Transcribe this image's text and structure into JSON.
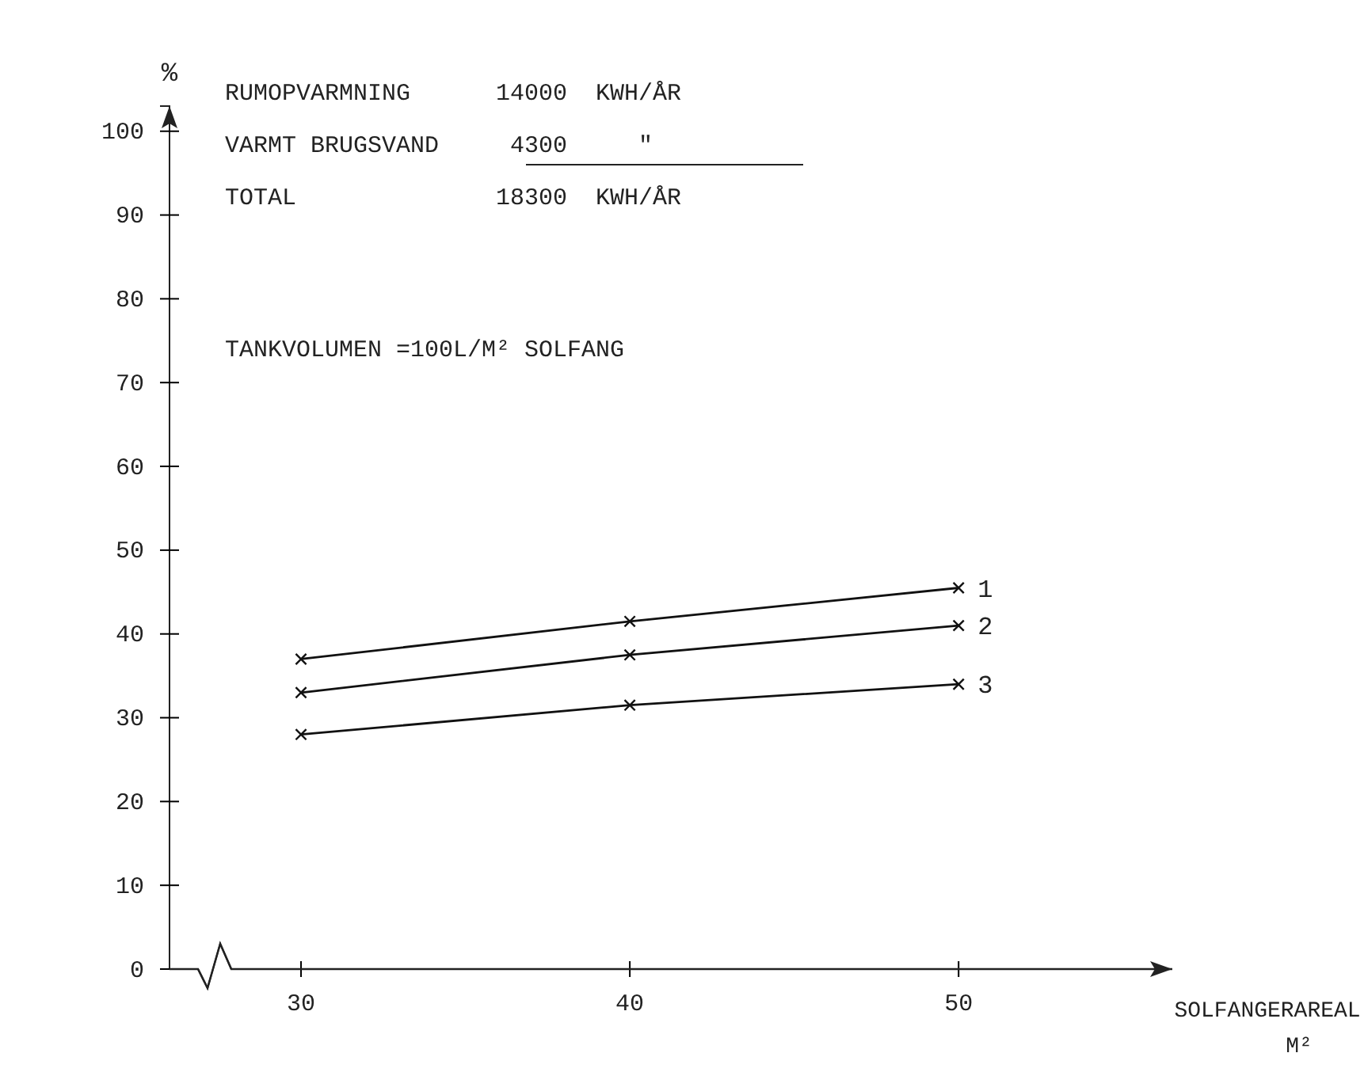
{
  "chart_data": {
    "type": "line",
    "ylabel": "%",
    "xlabel": "SOLFANGERAREAL M²",
    "x": [
      30,
      40,
      50
    ],
    "xlim": [
      26,
      56.5
    ],
    "xticks": [
      30,
      40,
      50
    ],
    "ylim": [
      0,
      103
    ],
    "yticks": [
      0,
      10,
      20,
      30,
      40,
      50,
      60,
      70,
      80,
      90,
      100
    ],
    "marker": "cross",
    "grid": false,
    "series": [
      {
        "name": "1",
        "color": "#111111",
        "values": [
          37,
          41.5,
          45.5
        ]
      },
      {
        "name": "2",
        "color": "#111111",
        "values": [
          33,
          37.5,
          41
        ]
      },
      {
        "name": "3",
        "color": "#111111",
        "values": [
          28,
          31.5,
          34
        ]
      }
    ],
    "annotations": [
      "RUMOPVARMNING      14000  KWH/ÅR",
      "VARMT BRUGSVAND     4300     ″",
      "TOTAL              18300  KWH/ÅR",
      "TANKVOLUMEN =100L/M² SOLFANG"
    ]
  }
}
